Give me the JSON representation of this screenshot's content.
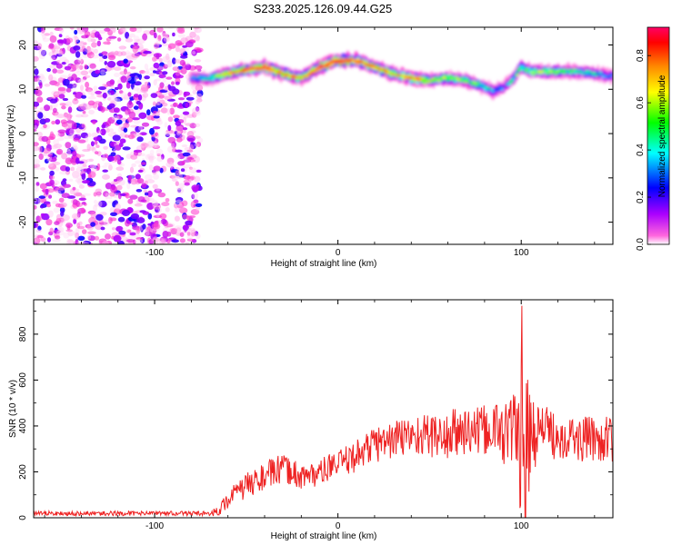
{
  "figure": {
    "title": "S233.2025.126.09.44.G25"
  },
  "chart_data": [
    {
      "type": "heatmap",
      "xlabel": "Height of straight line (km)",
      "ylabel": "Frequency (Hz)",
      "xlim": [
        -166,
        150
      ],
      "ylim": [
        -25,
        24
      ],
      "xticks": [
        -100,
        0,
        100
      ],
      "yticks": [
        -20,
        -10,
        0,
        10,
        20
      ],
      "colorbar": {
        "label": "Normalized spectral amplitude",
        "range": [
          0,
          0.92
        ],
        "ticks": [
          0.0,
          0.2,
          0.4,
          0.6,
          0.8
        ],
        "tick_labels": [
          "0.0",
          "0.2",
          "0.4",
          "0.6",
          "0.8"
        ],
        "colormap": [
          "#ffffff",
          "#ff33cc",
          "#aa00ff",
          "#0000ff",
          "#00ffff",
          "#00ff00",
          "#ffff00",
          "#ff8800",
          "#ff0000",
          "#ff0066"
        ]
      },
      "noise_region": {
        "x": [
          -166,
          -75
        ],
        "y": [
          -25,
          24
        ],
        "amplitude_range": [
          0.02,
          0.2
        ]
      },
      "signal_ridge": {
        "x": [
          -80,
          -70,
          -60,
          -50,
          -40,
          -30,
          -20,
          -10,
          0,
          10,
          20,
          30,
          40,
          50,
          60,
          70,
          80,
          85,
          90,
          95,
          100,
          105,
          110,
          120,
          130,
          140,
          150
        ],
        "frequency": [
          12.5,
          12.5,
          13.5,
          14.5,
          15,
          13.5,
          12.5,
          15,
          16.5,
          16.5,
          15,
          13.5,
          12.5,
          12,
          12.5,
          12,
          10.5,
          9.5,
          10.5,
          12,
          15,
          14,
          14,
          14,
          14,
          13.5,
          13
        ],
        "peak_amplitude": [
          0.35,
          0.5,
          0.65,
          0.8,
          0.85,
          0.7,
          0.75,
          0.9,
          0.9,
          0.8,
          0.75,
          0.7,
          0.8,
          0.65,
          0.6,
          0.55,
          0.5,
          0.45,
          0.4,
          0.5,
          0.55,
          0.55,
          0.6,
          0.55,
          0.5,
          0.45,
          0.4
        ]
      }
    },
    {
      "type": "line",
      "xlabel": "Height of straight line (km)",
      "ylabel": "SNR (10 * v/v)",
      "xlim": [
        -166,
        150
      ],
      "ylim": [
        0,
        950
      ],
      "xticks": [
        -100,
        0,
        100
      ],
      "yticks": [
        0,
        200,
        400,
        600,
        800
      ],
      "series": [
        {
          "color": "#ee2222",
          "x": [
            -166,
            -150,
            -130,
            -110,
            -90,
            -75,
            -70,
            -65,
            -60,
            -55,
            -50,
            -45,
            -40,
            -35,
            -30,
            -25,
            -20,
            -15,
            -10,
            -5,
            0,
            5,
            10,
            15,
            20,
            25,
            30,
            35,
            40,
            45,
            50,
            55,
            60,
            65,
            70,
            75,
            80,
            85,
            90,
            95,
            100,
            102,
            105,
            110,
            115,
            120,
            125,
            130,
            135,
            140,
            145,
            150
          ],
          "y": [
            15,
            15,
            15,
            15,
            15,
            15,
            20,
            30,
            80,
            110,
            140,
            160,
            180,
            200,
            210,
            200,
            180,
            185,
            195,
            220,
            230,
            250,
            270,
            300,
            320,
            330,
            340,
            350,
            360,
            360,
            360,
            355,
            350,
            370,
            380,
            370,
            380,
            390,
            370,
            380,
            360,
            300,
            340,
            400,
            370,
            360,
            360,
            340,
            340,
            350,
            340,
            340
          ],
          "noise_amplitude": [
            15,
            15,
            15,
            15,
            15,
            15,
            15,
            20,
            40,
            50,
            55,
            60,
            60,
            65,
            65,
            60,
            60,
            55,
            55,
            60,
            60,
            65,
            70,
            75,
            80,
            85,
            85,
            90,
            90,
            95,
            95,
            100,
            110,
            120,
            110,
            110,
            110,
            120,
            140,
            160,
            320,
            400,
            200,
            110,
            110,
            110,
            100,
            100,
            100,
            100,
            100,
            100
          ]
        }
      ]
    }
  ]
}
